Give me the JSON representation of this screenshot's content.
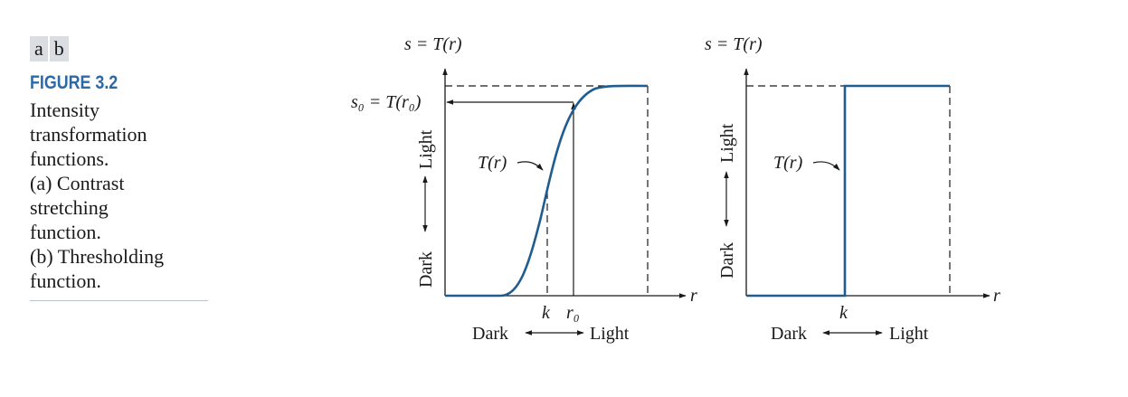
{
  "panel_tags": [
    "a",
    "b"
  ],
  "figure_label": "FIGURE 3.2",
  "caption_lines": [
    "Intensity",
    "transformation",
    "functions.",
    "(a) Contrast",
    "stretching",
    "function.",
    "(b) Thresholding",
    "function."
  ],
  "colors": {
    "curve": "#1f5c8f",
    "figure_label": "#2b6aa6",
    "tag_bg": "#dadde2"
  },
  "panel_a": {
    "y_axis_title": "s = T(r)",
    "s0_label": "s₀ = T(r₀)",
    "curve_label": "T(r)",
    "x_axis_symbol": "r",
    "x_tick_k": "k",
    "x_tick_r0": "r₀",
    "x_dark": "Dark",
    "x_light": "Light",
    "y_dark": "Dark",
    "y_light": "Light"
  },
  "panel_b": {
    "y_axis_title": "s = T(r)",
    "curve_label": "T(r)",
    "x_axis_symbol": "r",
    "x_tick_k": "k",
    "x_dark": "Dark",
    "x_light": "Light",
    "y_dark": "Dark",
    "y_light": "Light"
  }
}
